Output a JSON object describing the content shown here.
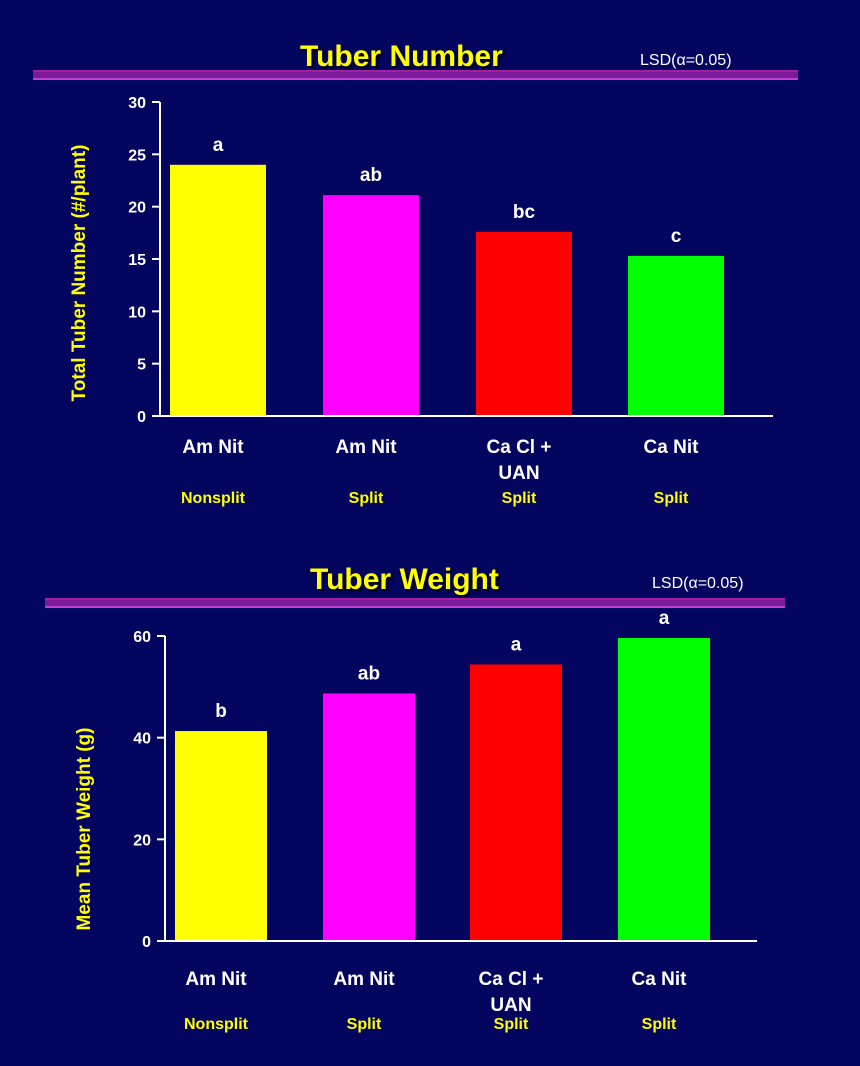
{
  "colors": {
    "background": "#04055e",
    "title": "#ffff00",
    "axis": "#ffffff",
    "divider": "#a020a0"
  },
  "chart_data": [
    {
      "type": "bar",
      "title": "Tuber Number",
      "annotation": "LSD(α=0.05)",
      "ylabel": "Total Tuber Number (#/plant)",
      "xlabel": "",
      "ylim": [
        0,
        30
      ],
      "yticks": [
        0,
        5,
        10,
        15,
        20,
        25,
        30
      ],
      "categories": [
        "Am Nit",
        "Am Nit",
        "Ca Cl + UAN",
        "Ca Nit"
      ],
      "category_lines": [
        [
          "Am Nit"
        ],
        [
          "Am Nit"
        ],
        [
          "Ca Cl +",
          "UAN"
        ],
        [
          "Ca Nit"
        ]
      ],
      "sublabels": [
        "Nonsplit",
        "Split",
        "Split",
        "Split"
      ],
      "values": [
        24,
        21.1,
        17.6,
        15.3
      ],
      "significance": [
        "a",
        "ab",
        "bc",
        "c"
      ],
      "bar_colors": [
        "#ffff00",
        "#ff00ff",
        "#ff0000",
        "#00ff00"
      ],
      "grid": false,
      "legend": "none"
    },
    {
      "type": "bar",
      "title": "Tuber Weight",
      "annotation": "LSD(α=0.05)",
      "ylabel": "Mean Tuber Weight (g)",
      "xlabel": "",
      "ylim": [
        0,
        60
      ],
      "yticks": [
        0,
        20,
        40,
        60
      ],
      "categories": [
        "Am Nit",
        "Am Nit",
        "Ca Cl + UAN",
        "Ca Nit"
      ],
      "category_lines": [
        [
          "Am Nit"
        ],
        [
          "Am Nit"
        ],
        [
          "Ca Cl +",
          "UAN"
        ],
        [
          "Ca Nit"
        ]
      ],
      "sublabels": [
        "Nonsplit",
        "Split",
        "Split",
        "Split"
      ],
      "values": [
        41.3,
        48.7,
        54.4,
        59.6
      ],
      "significance": [
        "b",
        "ab",
        "a",
        "a"
      ],
      "bar_colors": [
        "#ffff00",
        "#ff00ff",
        "#ff0000",
        "#00ff00"
      ],
      "grid": false,
      "legend": "none"
    }
  ]
}
